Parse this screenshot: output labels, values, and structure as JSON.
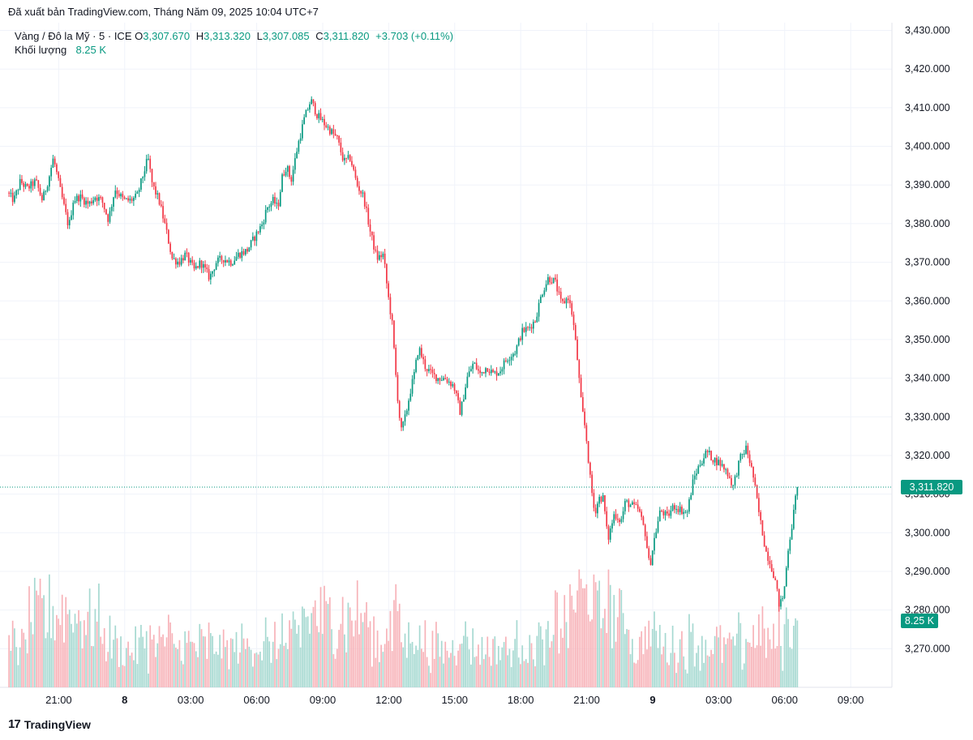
{
  "export_line": "Đã xuất bản TradingView.com, Tháng Năm 09, 2025 10:04 UTC+7",
  "legend": {
    "symbol": "Vàng / Đô la Mỹ · 5 · ICE",
    "open_label": "O",
    "open": "3,307.670",
    "high_label": "H",
    "high": "3,313.320",
    "low_label": "L",
    "low": "3,307.085",
    "close_label": "C",
    "close": "3,311.820",
    "change": "+3.703 (+0.11%)",
    "volume_label": "Khối lượng",
    "volume": "8.25 K"
  },
  "price_tag": "3,311.820",
  "volume_tag": "8.25 K",
  "brand": "TradingView",
  "colors": {
    "up": "#089981",
    "down": "#f23645",
    "up_volume": "#a6d9d1",
    "down_volume": "#f7b2b8",
    "grid": "#f0f3fa",
    "text": "#131722"
  },
  "chart_data": {
    "type": "candlestick",
    "interval": "5m",
    "y_axis": {
      "min": 3260,
      "max": 3432,
      "side": "right",
      "ticks": [
        "3,270.000",
        "3,280.000",
        "3,290.000",
        "3,300.000",
        "3,310.000",
        "3,320.000",
        "3,330.000",
        "3,340.000",
        "3,350.000",
        "3,360.000",
        "3,370.000",
        "3,380.000",
        "3,390.000",
        "3,400.000",
        "3,410.000",
        "3,420.000",
        "3,430.000"
      ]
    },
    "x_axis": {
      "tick_labels": [
        "21:00",
        "8",
        "03:00",
        "06:00",
        "09:00",
        "12:00",
        "15:00",
        "18:00",
        "21:00",
        "9",
        "03:00",
        "06:00",
        "09:00"
      ],
      "bold": [
        false,
        true,
        false,
        false,
        false,
        false,
        false,
        false,
        false,
        true,
        false,
        false,
        false
      ],
      "tick_times_h": [
        21,
        24,
        27,
        30,
        33,
        36,
        39,
        42,
        45,
        48,
        51,
        54,
        57
      ],
      "range_h": [
        18.7,
        58.8
      ]
    },
    "last_price": 3311.82,
    "price_path": [
      [
        18.7,
        3388
      ],
      [
        19.0,
        3386
      ],
      [
        19.3,
        3391
      ],
      [
        19.6,
        3389
      ],
      [
        20.0,
        3391
      ],
      [
        20.3,
        3386
      ],
      [
        20.6,
        3392
      ],
      [
        20.8,
        3397
      ],
      [
        21.1,
        3389
      ],
      [
        21.5,
        3379
      ],
      [
        21.7,
        3386
      ],
      [
        22.0,
        3387
      ],
      [
        22.4,
        3385
      ],
      [
        22.7,
        3387
      ],
      [
        23.0,
        3386
      ],
      [
        23.3,
        3381
      ],
      [
        23.6,
        3389
      ],
      [
        24.0,
        3386
      ],
      [
        24.3,
        3386
      ],
      [
        24.6,
        3387
      ],
      [
        24.9,
        3393
      ],
      [
        25.1,
        3397
      ],
      [
        25.3,
        3390
      ],
      [
        25.6,
        3386
      ],
      [
        25.9,
        3379
      ],
      [
        26.2,
        3371
      ],
      [
        26.5,
        3370
      ],
      [
        26.8,
        3372
      ],
      [
        27.2,
        3368
      ],
      [
        27.5,
        3370
      ],
      [
        27.9,
        3366
      ],
      [
        28.2,
        3370
      ],
      [
        28.5,
        3371
      ],
      [
        28.9,
        3370
      ],
      [
        29.2,
        3372
      ],
      [
        29.6,
        3373
      ],
      [
        30.0,
        3377
      ],
      [
        30.3,
        3380
      ],
      [
        30.5,
        3384
      ],
      [
        30.8,
        3386
      ],
      [
        31.0,
        3384
      ],
      [
        31.2,
        3392
      ],
      [
        31.4,
        3395
      ],
      [
        31.6,
        3391
      ],
      [
        31.9,
        3400
      ],
      [
        32.2,
        3407
      ],
      [
        32.5,
        3412
      ],
      [
        32.8,
        3408
      ],
      [
        33.1,
        3406
      ],
      [
        33.4,
        3404
      ],
      [
        33.7,
        3402
      ],
      [
        34.0,
        3396
      ],
      [
        34.3,
        3397
      ],
      [
        34.6,
        3390
      ],
      [
        34.9,
        3387
      ],
      [
        35.2,
        3378
      ],
      [
        35.5,
        3371
      ],
      [
        35.8,
        3372
      ],
      [
        36.0,
        3362
      ],
      [
        36.2,
        3354
      ],
      [
        36.4,
        3338
      ],
      [
        36.6,
        3326
      ],
      [
        36.8,
        3330
      ],
      [
        37.0,
        3336
      ],
      [
        37.2,
        3341
      ],
      [
        37.4,
        3348
      ],
      [
        37.7,
        3343
      ],
      [
        38.0,
        3341
      ],
      [
        38.3,
        3340
      ],
      [
        38.6,
        3340
      ],
      [
        39.0,
        3338
      ],
      [
        39.3,
        3331
      ],
      [
        39.6,
        3340
      ],
      [
        39.9,
        3344
      ],
      [
        40.2,
        3341
      ],
      [
        40.5,
        3343
      ],
      [
        40.8,
        3341
      ],
      [
        41.1,
        3342
      ],
      [
        41.4,
        3345
      ],
      [
        41.8,
        3347
      ],
      [
        42.1,
        3352
      ],
      [
        42.4,
        3353
      ],
      [
        42.7,
        3355
      ],
      [
        43.0,
        3362
      ],
      [
        43.3,
        3366
      ],
      [
        43.6,
        3365
      ],
      [
        43.9,
        3359
      ],
      [
        44.2,
        3361
      ],
      [
        44.4,
        3356
      ],
      [
        44.6,
        3346
      ],
      [
        44.8,
        3333
      ],
      [
        45.0,
        3326
      ],
      [
        45.2,
        3314
      ],
      [
        45.4,
        3305
      ],
      [
        45.6,
        3309
      ],
      [
        45.8,
        3309
      ],
      [
        46.0,
        3298
      ],
      [
        46.3,
        3305
      ],
      [
        46.6,
        3303
      ],
      [
        46.8,
        3308
      ],
      [
        47.1,
        3307
      ],
      [
        47.4,
        3306
      ],
      [
        47.7,
        3300
      ],
      [
        47.9,
        3291
      ],
      [
        48.1,
        3298
      ],
      [
        48.4,
        3306
      ],
      [
        48.7,
        3304
      ],
      [
        49.0,
        3307
      ],
      [
        49.3,
        3306
      ],
      [
        49.6,
        3305
      ],
      [
        49.9,
        3314
      ],
      [
        50.2,
        3318
      ],
      [
        50.5,
        3321
      ],
      [
        50.8,
        3319
      ],
      [
        51.1,
        3318
      ],
      [
        51.4,
        3316
      ],
      [
        51.7,
        3312
      ],
      [
        52.0,
        3319
      ],
      [
        52.3,
        3322
      ],
      [
        52.6,
        3315
      ],
      [
        52.9,
        3304
      ],
      [
        53.2,
        3295
      ],
      [
        53.4,
        3292
      ],
      [
        53.6,
        3288
      ],
      [
        53.8,
        3281
      ],
      [
        54.0,
        3284
      ],
      [
        54.2,
        3296
      ],
      [
        54.4,
        3303
      ],
      [
        54.6,
        3311.82
      ]
    ],
    "volume": {
      "scale_max_k": 18.0,
      "last_k": 8.25
    }
  }
}
